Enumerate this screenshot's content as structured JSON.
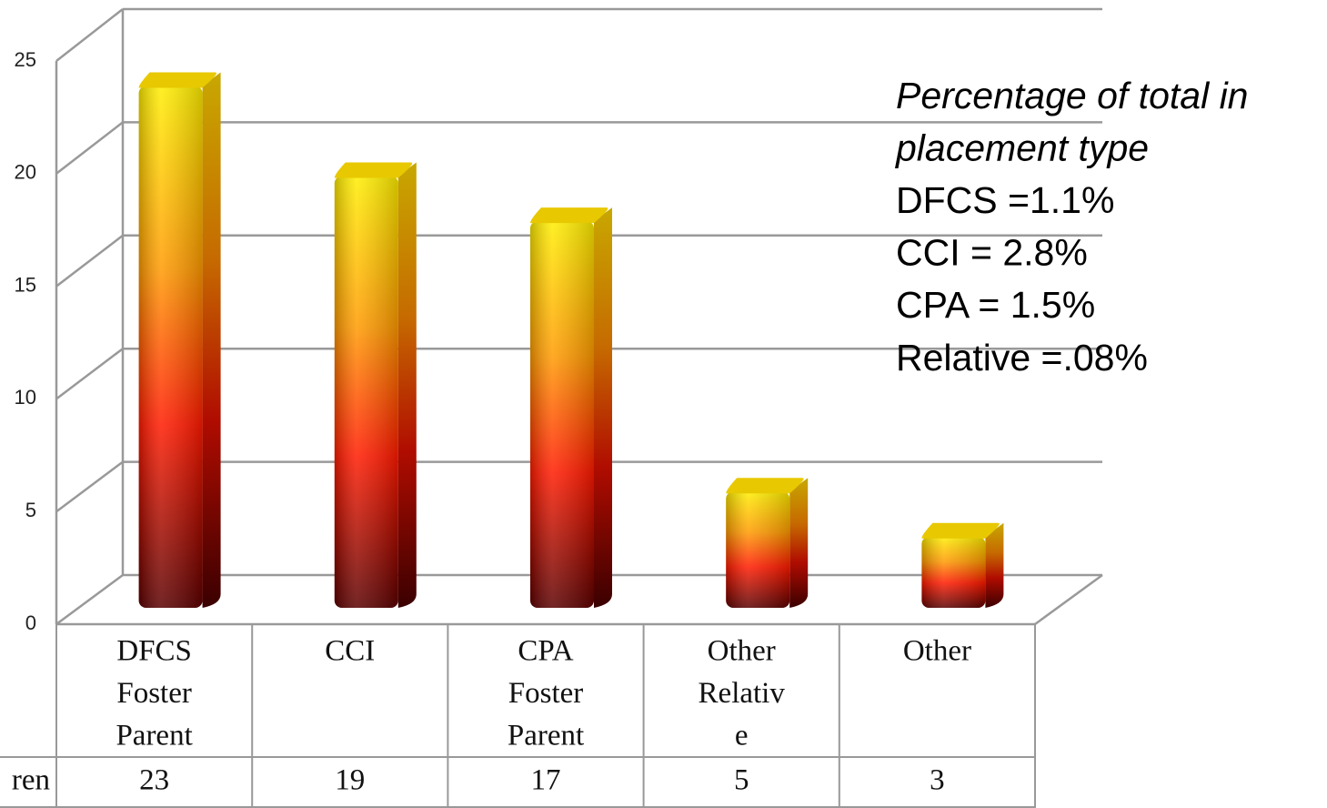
{
  "chart_data": {
    "type": "bar",
    "categories": [
      [
        "DFCS",
        "Foster",
        "Parent"
      ],
      [
        "CCI"
      ],
      [
        "CPA",
        "Foster",
        "Parent"
      ],
      [
        "Other",
        "Relativ",
        "e"
      ],
      [
        "Other"
      ]
    ],
    "series": [
      {
        "name": "ren",
        "color": "#ff2000",
        "values": [
          23,
          19,
          17,
          5,
          3
        ]
      }
    ],
    "ylim": [
      0,
      25
    ],
    "yticks": [
      0,
      5,
      10,
      15,
      20,
      25
    ],
    "grid": true,
    "annotation": {
      "title": [
        "Percentage of total in",
        "placement type"
      ],
      "lines": [
        "DFCS =1.1%",
        "CCI = 2.8%",
        "CPA = 1.5%",
        "Relative =.08%"
      ]
    }
  }
}
